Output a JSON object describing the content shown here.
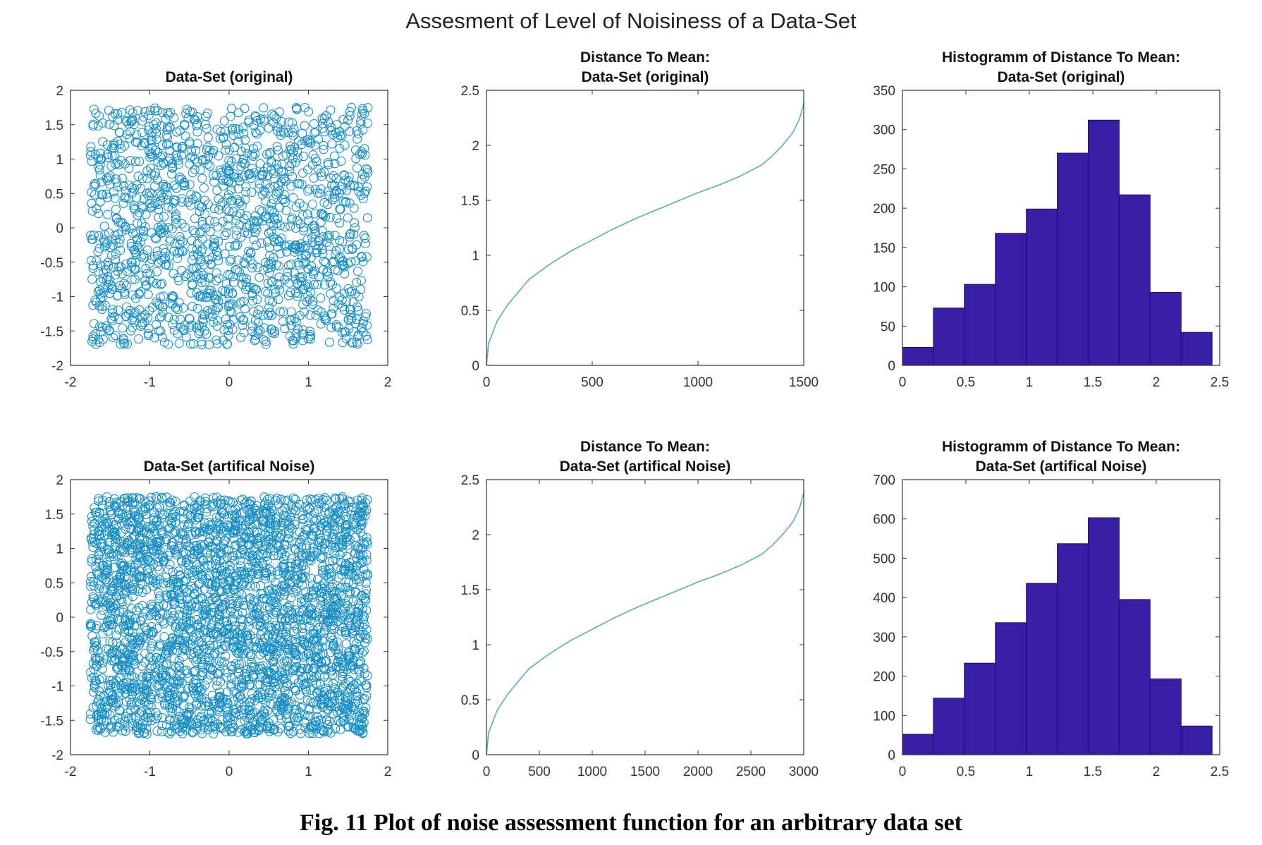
{
  "figure": {
    "title": "Assesment of Level of Noisiness of a Data-Set",
    "caption": "Fig. 11 Plot of noise assessment function for an arbitrary data set"
  },
  "colors": {
    "scatter": "#1a8fc4",
    "line": "#5aaab8",
    "histogram_fill": "#3a1fa6",
    "histogram_edge": "#1c0f5a",
    "axes": "#333333"
  },
  "chart_data": [
    {
      "type": "scatter",
      "title": [
        "Data-Set (original)"
      ],
      "marker": "open-circle",
      "xlim": [
        -2,
        2
      ],
      "ylim": [
        -2,
        2
      ],
      "xticks": [
        -2,
        -1,
        0,
        1,
        2
      ],
      "yticks": [
        -2,
        -1.5,
        -1,
        -0.5,
        0,
        0.5,
        1,
        1.5,
        2
      ],
      "point_count": 1500,
      "point_x_range": [
        -1.75,
        1.75
      ],
      "point_y_range": [
        -1.7,
        1.75
      ]
    },
    {
      "type": "line",
      "title": [
        "Distance To Mean:",
        "Data-Set (original)"
      ],
      "xlim": [
        0,
        1500
      ],
      "ylim": [
        0,
        2.5
      ],
      "xticks": [
        0,
        500,
        1000,
        1500
      ],
      "yticks": [
        0,
        0.5,
        1,
        1.5,
        2,
        2.5
      ],
      "x": [
        0,
        10,
        50,
        100,
        200,
        300,
        400,
        500,
        600,
        700,
        800,
        900,
        1000,
        1100,
        1200,
        1300,
        1350,
        1400,
        1450,
        1480,
        1500
      ],
      "y": [
        0.0,
        0.2,
        0.4,
        0.55,
        0.78,
        0.92,
        1.04,
        1.14,
        1.24,
        1.33,
        1.41,
        1.49,
        1.57,
        1.64,
        1.72,
        1.82,
        1.9,
        2.0,
        2.12,
        2.24,
        2.38
      ]
    },
    {
      "type": "bar",
      "title": [
        "Histogramm of Distance To Mean:",
        "Data-Set (original)"
      ],
      "xlim": [
        0,
        2.5
      ],
      "ylim": [
        0,
        350
      ],
      "xticks": [
        0,
        0.5,
        1,
        1.5,
        2,
        2.5
      ],
      "yticks": [
        0,
        50,
        100,
        150,
        200,
        250,
        300,
        350
      ],
      "bin_edges": [
        0,
        0.244,
        0.488,
        0.732,
        0.976,
        1.22,
        1.464,
        1.708,
        1.952,
        2.196,
        2.44
      ],
      "values": [
        23,
        73,
        103,
        168,
        199,
        270,
        312,
        217,
        93,
        42
      ]
    },
    {
      "type": "scatter",
      "title": [
        "Data-Set (artifical Noise)"
      ],
      "marker": "open-circle",
      "xlim": [
        -2,
        2
      ],
      "ylim": [
        -2,
        2
      ],
      "xticks": [
        -2,
        -1,
        0,
        1,
        2
      ],
      "yticks": [
        -2,
        -1.5,
        -1,
        -0.5,
        0,
        0.5,
        1,
        1.5,
        2
      ],
      "point_count": 3000,
      "point_x_range": [
        -1.75,
        1.75
      ],
      "point_y_range": [
        -1.7,
        1.75
      ]
    },
    {
      "type": "line",
      "title": [
        "Distance To Mean:",
        "Data-Set (artifical Noise)"
      ],
      "xlim": [
        0,
        3000
      ],
      "ylim": [
        0,
        2.5
      ],
      "xticks": [
        0,
        500,
        1000,
        1500,
        2000,
        2500,
        3000
      ],
      "yticks": [
        0,
        0.5,
        1,
        1.5,
        2,
        2.5
      ],
      "x": [
        0,
        20,
        100,
        200,
        400,
        600,
        800,
        1000,
        1200,
        1400,
        1600,
        1800,
        2000,
        2200,
        2400,
        2600,
        2700,
        2800,
        2900,
        2960,
        3000
      ],
      "y": [
        0.0,
        0.2,
        0.4,
        0.55,
        0.78,
        0.92,
        1.04,
        1.14,
        1.24,
        1.33,
        1.41,
        1.49,
        1.57,
        1.64,
        1.72,
        1.82,
        1.9,
        2.0,
        2.12,
        2.24,
        2.38
      ]
    },
    {
      "type": "bar",
      "title": [
        "Histogramm of Distance To Mean:",
        "Data-Set (artifical Noise)"
      ],
      "xlim": [
        0,
        2.5
      ],
      "ylim": [
        0,
        700
      ],
      "xticks": [
        0,
        0.5,
        1,
        1.5,
        2,
        2.5
      ],
      "yticks": [
        0,
        100,
        200,
        300,
        400,
        500,
        600,
        700
      ],
      "bin_edges": [
        0,
        0.244,
        0.488,
        0.732,
        0.976,
        1.22,
        1.464,
        1.708,
        1.952,
        2.196,
        2.44
      ],
      "values": [
        52,
        144,
        233,
        336,
        436,
        537,
        603,
        395,
        193,
        73
      ]
    }
  ]
}
